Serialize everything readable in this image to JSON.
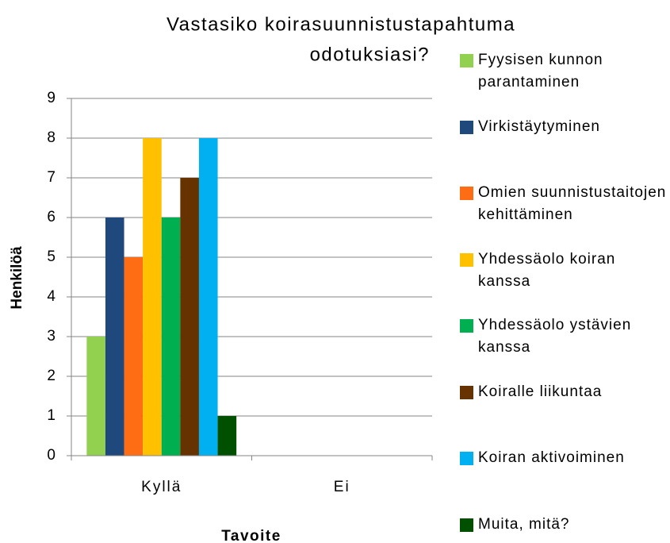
{
  "chart_data": {
    "type": "bar",
    "title": [
      "Vastasiko koirasuunnistustapahtuma",
      "odotuksiasi?"
    ],
    "x_label": "Tavoite",
    "y_label": "Henkilöä",
    "categories": [
      "Kyllä",
      "Ei"
    ],
    "series": [
      {
        "name": "Fyysisen kunnon parantaminen",
        "color": "#92d050",
        "values": [
          3,
          0
        ]
      },
      {
        "name": "Virkistäytyminen",
        "color": "#1f497d",
        "values": [
          6,
          0
        ]
      },
      {
        "name": "Omien suunnistustaitojen kehittäminen",
        "color": "#fe6c13",
        "values": [
          5,
          0
        ]
      },
      {
        "name": "Yhdessäolo koiran kanssa",
        "color": "#ffc000",
        "values": [
          8,
          0
        ]
      },
      {
        "name": "Yhdessäolo ystävien kanssa",
        "color": "#00b050",
        "values": [
          6,
          0
        ]
      },
      {
        "name": "Koiralle liikuntaa",
        "color": "#663300",
        "values": [
          7,
          0
        ]
      },
      {
        "name": "Koiran aktivoiminen",
        "color": "#00b0f0",
        "values": [
          8,
          0
        ]
      },
      {
        "name": "Muita, mitä?",
        "color": "#005000",
        "values": [
          1,
          0
        ]
      }
    ],
    "ylim": [
      0,
      9
    ],
    "yticks": [
      0,
      1,
      2,
      3,
      4,
      5,
      6,
      7,
      8,
      9
    ],
    "grid": true,
    "legend": "right"
  }
}
